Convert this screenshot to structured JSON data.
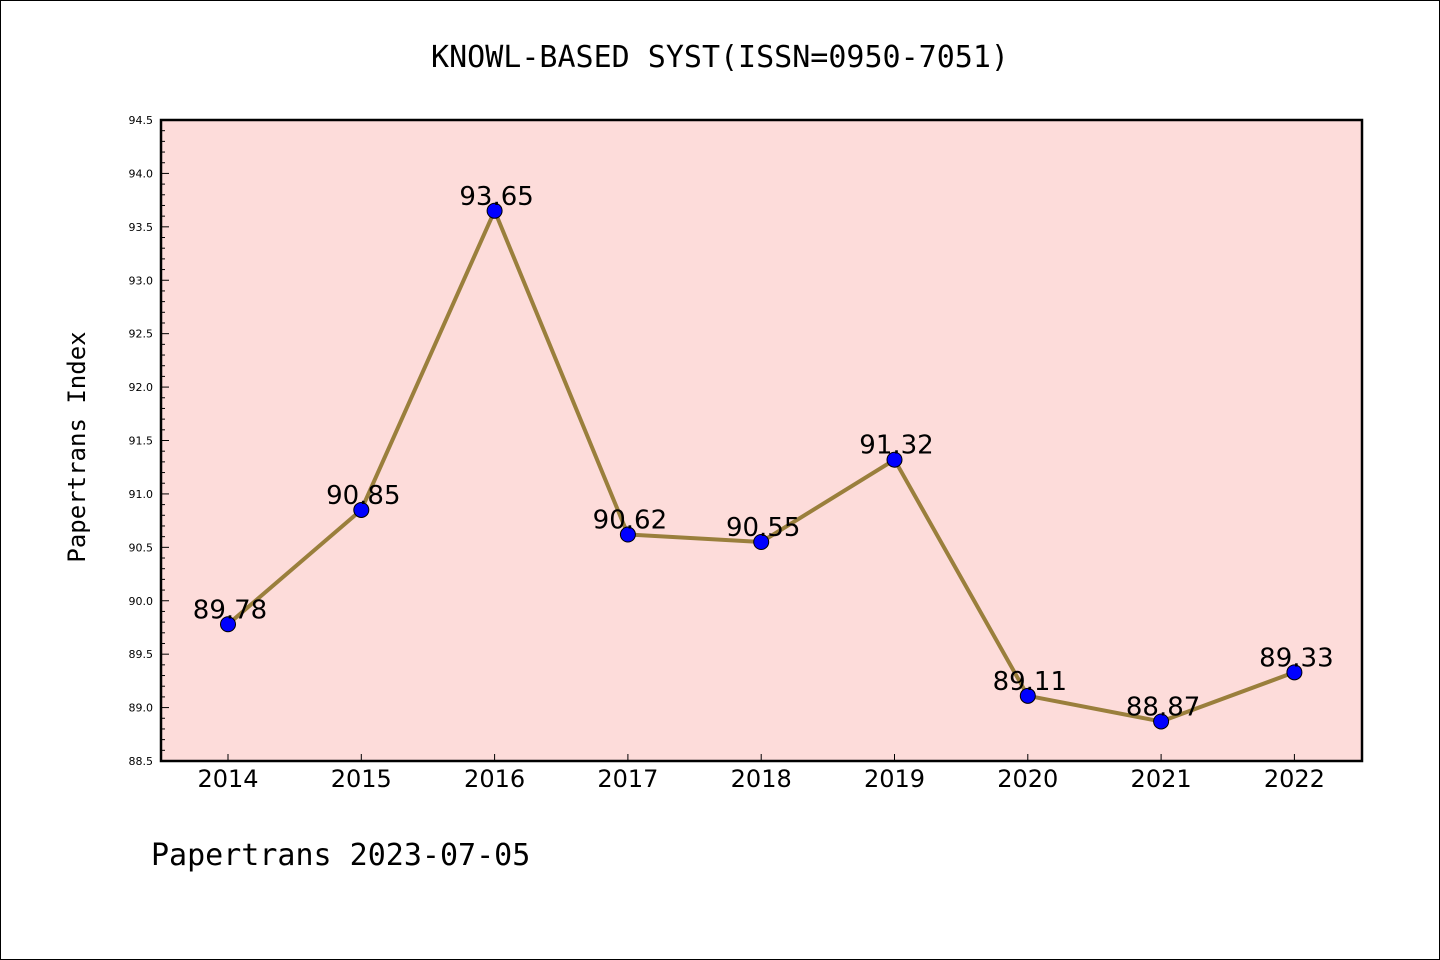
{
  "chart_data": {
    "type": "line",
    "title": "KNOWL-BASED SYST(ISSN=0950-7051)",
    "xlabel": "",
    "ylabel": "Papertrans Index",
    "footer": "Papertrans 2023-07-05",
    "x": [
      "2014",
      "2015",
      "2016",
      "2017",
      "2018",
      "2019",
      "2020",
      "2021",
      "2022"
    ],
    "values": [
      89.78,
      90.85,
      93.65,
      90.62,
      90.55,
      91.32,
      89.11,
      88.87,
      89.33
    ],
    "data_labels": [
      "89.78",
      "90.85",
      "93.65",
      "90.62",
      "90.55",
      "91.32",
      "89.11",
      "88.87",
      "89.33"
    ],
    "ylim": [
      88.5,
      94.5
    ],
    "yticks": [
      "88.5",
      "89.0",
      "89.5",
      "90.0",
      "90.5",
      "91.0",
      "91.5",
      "92.0",
      "92.5",
      "93.0",
      "93.5",
      "94.0",
      "94.5"
    ],
    "grid": false,
    "legend": "none",
    "colors": {
      "plot_background": "#fddcda",
      "line": "#9a7f3c",
      "marker": "#0000ff"
    }
  }
}
